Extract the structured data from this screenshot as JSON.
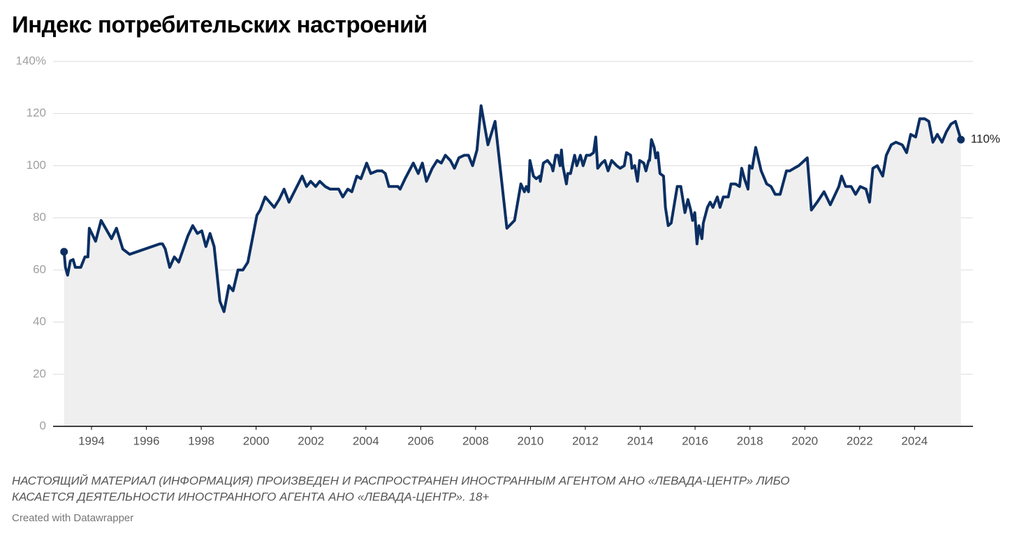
{
  "chart_data": {
    "type": "line",
    "title": "Индекс потребительских настроений",
    "note": [
      "НАСТОЯЩИЙ МАТЕРИАЛ (ИНФОРМАЦИЯ) ПРОИЗВЕДЕН И РАСПРОСТРАНЕН ИНОСТРАННЫМ АГЕНТОМ АНО «ЛЕВАДА-ЦЕНТР» ЛИБО",
      "КАСАЕТСЯ ДЕЯТЕЛЬНОСТИ ИНОСТРАННОГО АГЕНТА АНО «ЛЕВАДА-ЦЕНТР». 18+"
    ],
    "credit": "Created with Datawrapper",
    "color": "#0b2f63",
    "area_color": "#efefef",
    "grid": true,
    "xlim": [
      1992.6,
      2026.13
    ],
    "xticks": [
      1994,
      1996,
      1998,
      2000,
      2002,
      2004,
      2006,
      2008,
      2010,
      2012,
      2014,
      2016,
      2018,
      2020,
      2022,
      2024
    ],
    "ylim": [
      0,
      140
    ],
    "yticks": [
      0,
      20,
      40,
      60,
      80,
      100,
      120,
      {
        "value": 140,
        "label": "140%"
      }
    ],
    "x": [
      1993.0,
      1993.05,
      1993.13,
      1993.23,
      1993.33,
      1993.41,
      1993.61,
      1993.76,
      1993.87,
      1993.92,
      1994.15,
      1994.35,
      1994.73,
      1994.91,
      1995.14,
      1995.39,
      1996.49,
      1996.59,
      1996.69,
      1996.85,
      1997.02,
      1997.18,
      1997.51,
      1997.69,
      1997.86,
      1998.02,
      1998.17,
      1998.32,
      1998.47,
      1998.68,
      1998.83,
      1999.01,
      1999.16,
      1999.34,
      1999.52,
      1999.7,
      2000.03,
      2000.15,
      2000.33,
      2000.66,
      2000.84,
      2001.02,
      2001.2,
      2001.68,
      2001.84,
      2001.99,
      2002.17,
      2002.32,
      2002.52,
      2002.7,
      2003.01,
      2003.16,
      2003.34,
      2003.49,
      2003.67,
      2003.82,
      2004.03,
      2004.18,
      2004.41,
      2004.59,
      2004.71,
      2004.84,
      2005.17,
      2005.25,
      2005.43,
      2005.73,
      2005.91,
      2006.06,
      2006.21,
      2006.42,
      2006.6,
      2006.75,
      2006.9,
      2007.08,
      2007.23,
      2007.39,
      2007.59,
      2007.74,
      2007.89,
      2008.05,
      2008.2,
      2008.45,
      2008.71,
      2009.14,
      2009.42,
      2009.65,
      2009.78,
      2009.85,
      2009.93,
      2009.98,
      2010.11,
      2010.21,
      2010.34,
      2010.36,
      2010.47,
      2010.62,
      2010.77,
      2010.82,
      2010.92,
      2011.0,
      2011.08,
      2011.13,
      2011.18,
      2011.31,
      2011.36,
      2011.46,
      2011.61,
      2011.69,
      2011.82,
      2011.92,
      2012.04,
      2012.17,
      2012.3,
      2012.38,
      2012.45,
      2012.6,
      2012.71,
      2012.83,
      2012.96,
      2013.14,
      2013.27,
      2013.42,
      2013.5,
      2013.65,
      2013.7,
      2013.8,
      2013.9,
      2013.98,
      2014.13,
      2014.21,
      2014.31,
      2014.34,
      2014.41,
      2014.51,
      2014.57,
      2014.64,
      2014.72,
      2014.85,
      2014.92,
      2015.02,
      2015.13,
      2015.35,
      2015.48,
      2015.63,
      2015.74,
      2015.84,
      2015.91,
      2015.99,
      2016.07,
      2016.14,
      2016.25,
      2016.3,
      2016.45,
      2016.55,
      2016.65,
      2016.81,
      2016.91,
      2017.03,
      2017.21,
      2017.31,
      2017.47,
      2017.62,
      2017.7,
      2017.8,
      2017.93,
      2017.98,
      2018.08,
      2018.21,
      2018.41,
      2018.61,
      2018.77,
      2018.92,
      2019.1,
      2019.33,
      2019.45,
      2019.61,
      2019.78,
      2020.09,
      2020.24,
      2020.45,
      2020.7,
      2020.93,
      2021.24,
      2021.34,
      2021.49,
      2021.69,
      2021.85,
      2022.02,
      2022.23,
      2022.36,
      2022.48,
      2022.64,
      2022.84,
      2022.97,
      2023.15,
      2023.32,
      2023.55,
      2023.71,
      2023.86,
      2024.04,
      2024.19,
      2024.37,
      2024.52,
      2024.67,
      2024.83,
      2025.0,
      2025.16,
      2025.33,
      2025.49,
      2025.69
    ],
    "values": [
      67,
      61,
      58,
      63.5,
      64,
      61,
      61,
      65,
      65,
      76,
      71,
      79,
      72,
      76,
      68,
      66,
      70,
      70,
      68,
      61,
      65,
      63,
      73,
      77,
      74,
      75,
      69,
      74,
      69,
      48,
      44,
      54,
      52,
      60,
      60,
      63,
      81,
      83,
      88,
      84,
      87,
      91,
      86,
      96,
      92,
      94,
      92,
      94,
      92,
      91,
      91,
      88,
      91,
      90,
      96,
      95,
      101,
      97,
      98,
      98,
      97,
      92,
      92,
      91,
      95,
      101,
      97,
      101,
      94,
      99,
      102,
      101,
      104,
      102,
      99,
      103,
      104,
      104,
      100,
      106,
      123,
      108,
      117,
      76,
      79,
      93,
      90,
      92,
      90,
      102,
      96,
      95,
      96,
      94,
      101,
      102,
      100,
      98,
      104,
      104,
      100,
      106,
      100,
      93,
      97,
      97,
      104,
      100,
      104,
      100,
      104,
      104,
      105,
      111,
      99,
      101,
      102,
      98,
      102,
      100,
      99,
      100,
      105,
      104,
      99,
      100,
      94,
      102,
      101,
      98,
      102,
      102,
      110,
      107,
      103,
      105,
      97,
      96,
      84,
      77,
      78,
      92,
      92,
      82,
      87,
      83,
      79,
      82,
      70,
      77,
      72,
      78,
      84,
      86,
      84,
      88,
      84,
      88,
      88,
      93,
      93,
      92,
      99,
      95,
      91,
      100,
      99,
      107,
      98,
      93,
      92,
      89,
      89,
      98,
      98,
      99,
      100,
      103,
      83,
      86,
      90,
      85,
      92,
      96,
      92,
      92,
      89,
      92,
      91,
      86,
      99,
      100,
      96,
      104,
      108,
      109,
      108,
      105,
      112,
      111,
      118,
      118,
      117,
      109,
      112,
      109,
      113,
      116,
      117,
      110
    ],
    "value_labels": {
      "209": "110%"
    }
  }
}
